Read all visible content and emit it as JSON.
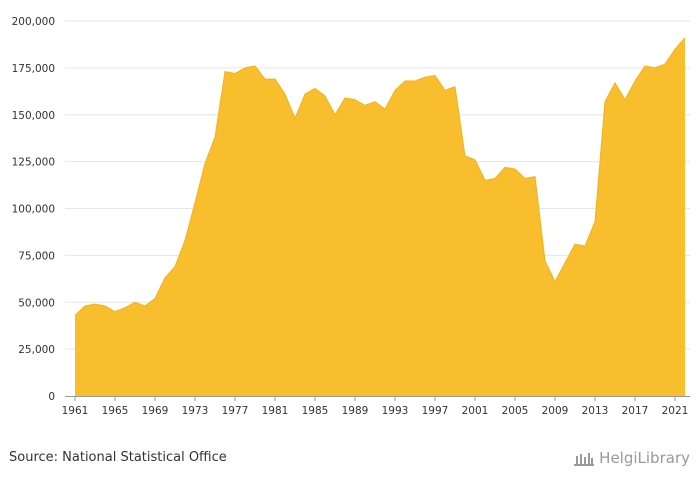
{
  "source_text": "Source: National Statistical Office",
  "logo_text": "HelgiLibrary",
  "colors": {
    "area_fill": "#f8be2e",
    "area_stroke": "#f0b21c",
    "grid": "#e6e6e6",
    "axis": "#999999",
    "text": "#333333",
    "logo": "#9a9a9a"
  },
  "chart_data": {
    "type": "area",
    "title": "",
    "xlabel": "",
    "ylabel": "",
    "ylim": [
      0,
      200000
    ],
    "yticks": [
      0,
      25000,
      50000,
      75000,
      100000,
      125000,
      150000,
      175000,
      200000
    ],
    "ytick_labels": [
      "0",
      "25,000",
      "50,000",
      "75,000",
      "100,000",
      "125,000",
      "150,000",
      "175,000",
      "200,000"
    ],
    "xticks": [
      1961,
      1965,
      1969,
      1973,
      1977,
      1981,
      1985,
      1989,
      1993,
      1997,
      2001,
      2005,
      2009,
      2013,
      2017,
      2021
    ],
    "xtick_labels": [
      "1961",
      "1965",
      "1969",
      "1973",
      "1977",
      "1981",
      "1985",
      "1989",
      "1993",
      "1997",
      "2001",
      "2005",
      "2009",
      "2013",
      "2017",
      "2021"
    ],
    "grid": true,
    "legend": "none",
    "x": [
      1961,
      1962,
      1963,
      1964,
      1965,
      1966,
      1967,
      1968,
      1969,
      1970,
      1971,
      1972,
      1973,
      1974,
      1975,
      1976,
      1977,
      1978,
      1979,
      1980,
      1981,
      1982,
      1983,
      1984,
      1985,
      1986,
      1987,
      1988,
      1989,
      1990,
      1991,
      1992,
      1993,
      1994,
      1995,
      1996,
      1997,
      1998,
      1999,
      2000,
      2001,
      2002,
      2003,
      2004,
      2005,
      2006,
      2007,
      2008,
      2009,
      2010,
      2011,
      2012,
      2013,
      2014,
      2015,
      2016,
      2017,
      2018,
      2019,
      2020,
      2021,
      2022
    ],
    "values": [
      43000,
      48000,
      49000,
      48000,
      45000,
      47000,
      50000,
      48000,
      52000,
      63000,
      69000,
      83000,
      103000,
      124000,
      138000,
      173000,
      172000,
      175000,
      176000,
      169000,
      169000,
      161000,
      148000,
      161000,
      164000,
      160000,
      150000,
      159000,
      158000,
      155000,
      157000,
      153000,
      163000,
      168000,
      168000,
      170000,
      171000,
      163000,
      165000,
      128000,
      126000,
      115000,
      116000,
      122000,
      121000,
      116000,
      117000,
      72000,
      61000,
      71000,
      81000,
      80000,
      93000,
      157000,
      167000,
      158000,
      168000,
      176000,
      175000,
      177000,
      185000,
      191000
    ]
  }
}
